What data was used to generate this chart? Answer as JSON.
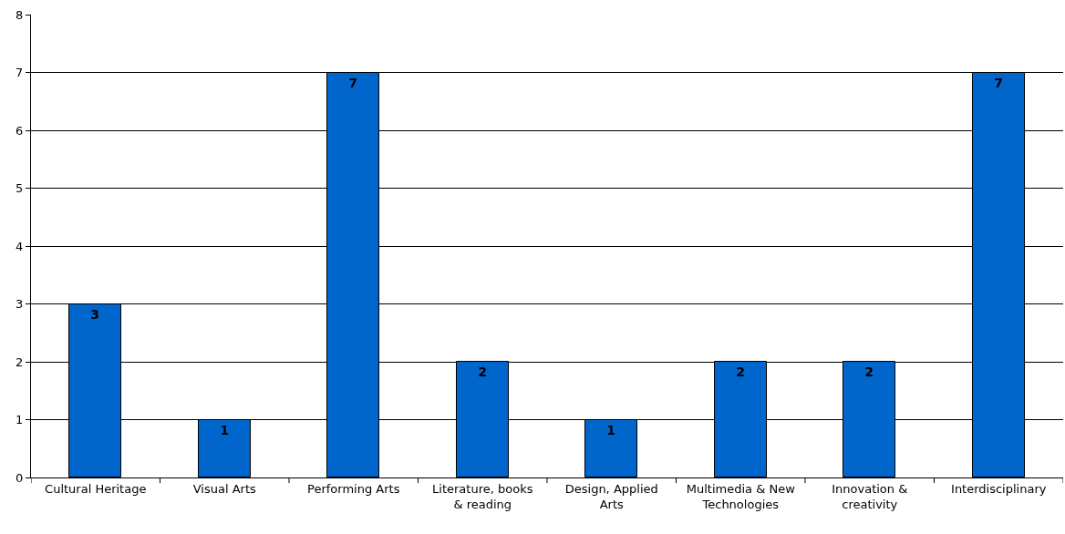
{
  "chart_data": {
    "type": "bar",
    "categories": [
      "Cultural Heritage",
      "Visual Arts",
      "Performing Arts",
      "Literature, books & reading",
      "Design, Applied Arts",
      "Multimedia & New Technologies",
      "Innovation & creativity",
      "Interdisciplinary"
    ],
    "values": [
      3,
      1,
      7,
      2,
      1,
      2,
      2,
      7
    ],
    "color": "#0066cc",
    "ylim": [
      0,
      8
    ],
    "yticks": [
      0,
      1,
      2,
      3,
      4,
      5,
      6,
      7,
      8
    ],
    "grid": "y",
    "data_labels": true
  }
}
